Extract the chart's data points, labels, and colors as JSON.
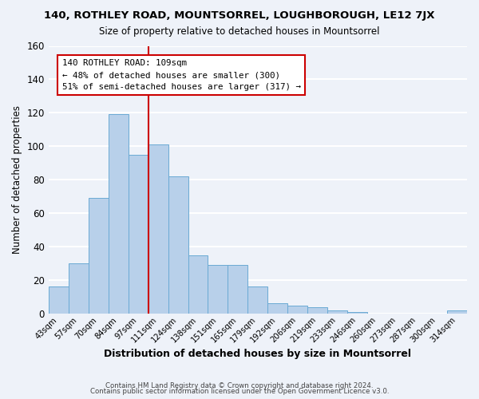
{
  "title": "140, ROTHLEY ROAD, MOUNTSORREL, LOUGHBOROUGH, LE12 7JX",
  "subtitle": "Size of property relative to detached houses in Mountsorrel",
  "xlabel": "Distribution of detached houses by size in Mountsorrel",
  "ylabel": "Number of detached properties",
  "footer_line1": "Contains HM Land Registry data © Crown copyright and database right 2024.",
  "footer_line2": "Contains public sector information licensed under the Open Government Licence v3.0.",
  "bar_labels": [
    "43sqm",
    "57sqm",
    "70sqm",
    "84sqm",
    "97sqm",
    "111sqm",
    "124sqm",
    "138sqm",
    "151sqm",
    "165sqm",
    "179sqm",
    "192sqm",
    "206sqm",
    "219sqm",
    "233sqm",
    "246sqm",
    "260sqm",
    "273sqm",
    "287sqm",
    "300sqm",
    "314sqm"
  ],
  "bar_values": [
    16,
    30,
    69,
    119,
    95,
    101,
    82,
    35,
    29,
    29,
    16,
    6,
    5,
    4,
    2,
    1,
    0,
    0,
    0,
    0,
    2
  ],
  "bar_color": "#b8d0ea",
  "bar_edge_color": "#6aaad4",
  "background_color": "#eef2f9",
  "grid_color": "#ffffff",
  "ref_line_x": 4.5,
  "ref_line_label": "140 ROTHLEY ROAD: 109sqm",
  "annotation_line1": "← 48% of detached houses are smaller (300)",
  "annotation_line2": "51% of semi-detached houses are larger (317) →",
  "box_color": "#ffffff",
  "box_edge_color": "#cc0000",
  "ref_line_color": "#cc0000",
  "ylim": [
    0,
    160
  ],
  "yticks": [
    0,
    20,
    40,
    60,
    80,
    100,
    120,
    140,
    160
  ]
}
